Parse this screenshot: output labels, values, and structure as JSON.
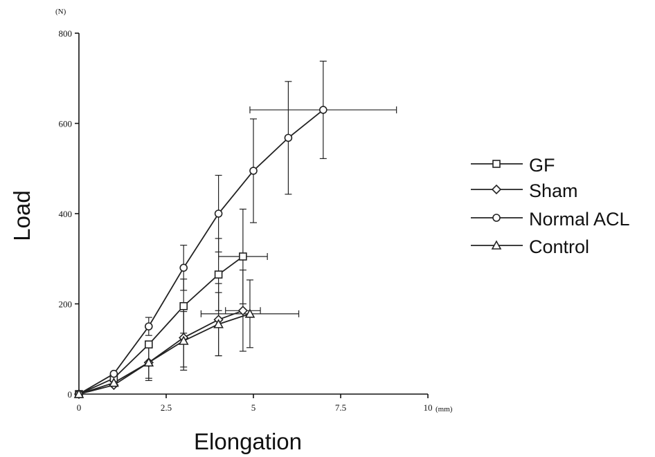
{
  "chart_data": {
    "type": "line",
    "xlabel": "Elongation",
    "ylabel": "Load",
    "x_unit": "(mm)",
    "y_unit": "(N)",
    "xlim": [
      0,
      10
    ],
    "ylim": [
      0,
      800
    ],
    "x_ticks": [
      0,
      2.5,
      5,
      7.5,
      10
    ],
    "x_tick_labels": [
      "0",
      "2.5",
      "5",
      "7.5",
      "10"
    ],
    "y_ticks": [
      0,
      200,
      400,
      600,
      800
    ],
    "y_tick_labels": [
      "0",
      "200",
      "400",
      "600",
      "800"
    ],
    "grid": false,
    "legend_position": "right",
    "series": [
      {
        "name": "GF",
        "marker": "square",
        "x": [
          0,
          1,
          2,
          3,
          4,
          4.7
        ],
        "y": [
          0,
          35,
          110,
          195,
          265,
          305
        ],
        "y_err": [
          0,
          0,
          0,
          60,
          80,
          105
        ],
        "x_err": [
          0,
          0,
          0,
          0,
          0,
          0.7
        ]
      },
      {
        "name": "Sham",
        "marker": "diamond",
        "x": [
          0,
          1,
          2,
          3,
          4,
          4.7
        ],
        "y": [
          0,
          20,
          70,
          125,
          165,
          185
        ],
        "y_err": [
          0,
          0,
          35,
          65,
          80,
          90
        ],
        "x_err": [
          0,
          0,
          0,
          0,
          0,
          0.5
        ]
      },
      {
        "name": "Normal ACL",
        "marker": "circle",
        "x": [
          0,
          1,
          2,
          3,
          4,
          5,
          6,
          7
        ],
        "y": [
          0,
          45,
          150,
          280,
          400,
          495,
          568,
          630
        ],
        "y_err": [
          0,
          0,
          20,
          50,
          85,
          115,
          125,
          108
        ],
        "x_err": [
          0,
          0,
          0,
          0,
          0,
          0,
          0,
          2.1
        ]
      },
      {
        "name": "Control",
        "marker": "triangle",
        "x": [
          0,
          1,
          2,
          3,
          4,
          4.9
        ],
        "y": [
          0,
          25,
          70,
          118,
          155,
          178
        ],
        "y_err": [
          0,
          0,
          40,
          65,
          70,
          75
        ],
        "x_err": [
          0,
          0,
          0,
          0,
          0,
          1.4
        ]
      }
    ]
  },
  "colors": {
    "ink": "#222222",
    "background": "#ffffff"
  }
}
